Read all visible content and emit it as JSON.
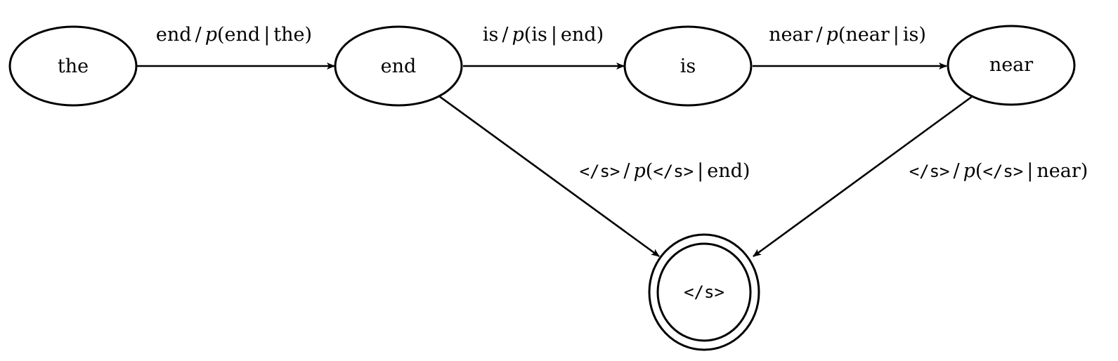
{
  "nodes": {
    "the": "the",
    "end": "end",
    "is": "is",
    "near": "near",
    "final": "</s>"
  },
  "edges": {
    "the_end": {
      "sym": "end",
      "p": "p",
      "open": "(",
      "a": "end",
      "bar": "|",
      "b": "the",
      "close": ")"
    },
    "end_is": {
      "sym": "is",
      "p": "p",
      "open": "(",
      "a": "is",
      "bar": "|",
      "b": "end",
      "close": ")"
    },
    "is_near": {
      "sym": "near",
      "p": "p",
      "open": "(",
      "a": "near",
      "bar": "|",
      "b": "is",
      "close": ")"
    },
    "end_final": {
      "sym": "</s>",
      "p": "p",
      "open": "(",
      "a": "</s>",
      "bar": "|",
      "b": "end",
      "close": ")"
    },
    "near_final": {
      "sym": "</s>",
      "p": "p",
      "open": "(",
      "a": "</s>",
      "bar": "|",
      "b": "near",
      "close": ")"
    }
  },
  "separator": "/"
}
